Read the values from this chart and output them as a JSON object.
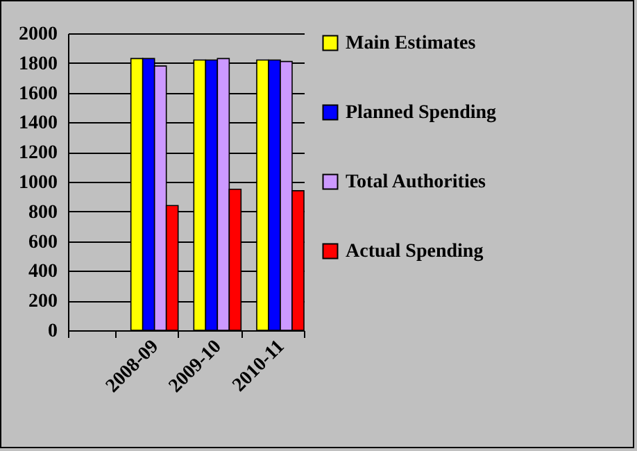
{
  "chart_data": {
    "type": "bar",
    "categories": [
      null,
      "2008-09",
      "2009-10",
      "2010-11"
    ],
    "series": [
      {
        "name": "Main Estimates",
        "color": "#ffff00",
        "values": [
          null,
          1830,
          1820,
          1820
        ]
      },
      {
        "name": "Planned Spending",
        "color": "#0000ff",
        "values": [
          null,
          1830,
          1820,
          1820
        ]
      },
      {
        "name": "Total Authorities",
        "color": "#cc99ff",
        "values": [
          null,
          1780,
          1830,
          1810
        ]
      },
      {
        "name": "Actual Spending",
        "color": "#ff0000",
        "values": [
          null,
          840,
          950,
          940
        ]
      }
    ],
    "ylim": [
      0,
      2000
    ],
    "yticks": [
      0,
      200,
      400,
      600,
      800,
      1000,
      1200,
      1400,
      1600,
      1800,
      2000
    ],
    "grid": "y",
    "legend": "right"
  }
}
